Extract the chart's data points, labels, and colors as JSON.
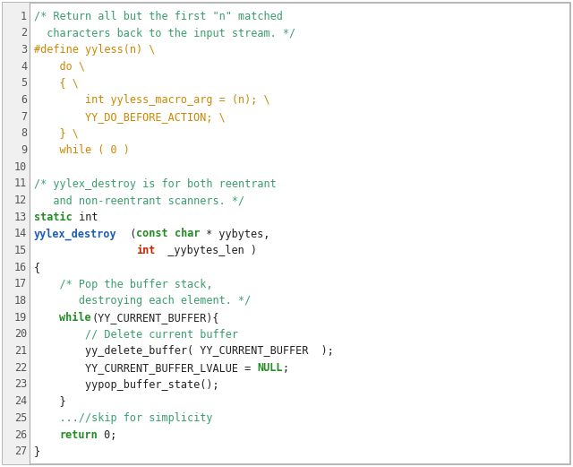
{
  "background_color": "#ffffff",
  "border_color": "#aaaaaa",
  "line_number_color": "#555555",
  "line_number_bg": "#f0f0f0",
  "figsize": [
    6.4,
    5.21
  ],
  "dpi": 100,
  "font_family": "DejaVu Sans Mono",
  "font_size": 8.5,
  "colors": {
    "comment": "#3a9e6e",
    "preprocessor": "#cc8800",
    "keyword": "#228B22",
    "function": "#1a5fb4",
    "normal": "#222222",
    "special": "#228B22",
    "red_keyword": "#cc2200"
  },
  "lines": [
    {
      "num": 1,
      "tokens": [
        {
          "text": "/* Return all but the first \"n\" matched",
          "color": "comment"
        }
      ]
    },
    {
      "num": 2,
      "tokens": [
        {
          "text": "  characters back to the input stream. */",
          "color": "comment"
        }
      ]
    },
    {
      "num": 3,
      "tokens": [
        {
          "text": "#define yyless(n) \\",
          "color": "preprocessor"
        }
      ]
    },
    {
      "num": 4,
      "tokens": [
        {
          "text": "    do \\",
          "color": "preprocessor"
        }
      ]
    },
    {
      "num": 5,
      "tokens": [
        {
          "text": "    { \\",
          "color": "preprocessor"
        }
      ]
    },
    {
      "num": 6,
      "tokens": [
        {
          "text": "        int yyless_macro_arg = (n); \\",
          "color": "preprocessor"
        }
      ]
    },
    {
      "num": 7,
      "tokens": [
        {
          "text": "        YY_DO_BEFORE_ACTION; \\",
          "color": "preprocessor"
        }
      ]
    },
    {
      "num": 8,
      "tokens": [
        {
          "text": "    } \\",
          "color": "preprocessor"
        }
      ]
    },
    {
      "num": 9,
      "tokens": [
        {
          "text": "    while ( 0 )",
          "color": "preprocessor"
        }
      ]
    },
    {
      "num": 10,
      "tokens": []
    },
    {
      "num": 11,
      "tokens": [
        {
          "text": "/* yylex_destroy is for both reentrant",
          "color": "comment"
        }
      ]
    },
    {
      "num": 12,
      "tokens": [
        {
          "text": "   and non-reentrant scanners. */",
          "color": "comment"
        }
      ]
    },
    {
      "num": 13,
      "tokens": [
        {
          "text": "static",
          "color": "keyword"
        },
        {
          "text": " int",
          "color": "normal"
        }
      ]
    },
    {
      "num": 14,
      "tokens": [
        {
          "text": "yylex_destroy",
          "color": "function"
        },
        {
          "text": "  (",
          "color": "normal"
        },
        {
          "text": "const",
          "color": "keyword"
        },
        {
          "text": " ",
          "color": "normal"
        },
        {
          "text": "char",
          "color": "keyword"
        },
        {
          "text": " * yybytes,",
          "color": "normal"
        }
      ]
    },
    {
      "num": 15,
      "tokens": [
        {
          "text": "                ",
          "color": "normal"
        },
        {
          "text": "int",
          "color": "red_keyword"
        },
        {
          "text": "  _yybytes_len )",
          "color": "normal"
        }
      ]
    },
    {
      "num": 16,
      "tokens": [
        {
          "text": "{",
          "color": "normal"
        }
      ]
    },
    {
      "num": 17,
      "tokens": [
        {
          "text": "    /* Pop the buffer stack,",
          "color": "comment"
        }
      ]
    },
    {
      "num": 18,
      "tokens": [
        {
          "text": "       destroying each element. */",
          "color": "comment"
        }
      ]
    },
    {
      "num": 19,
      "tokens": [
        {
          "text": "    ",
          "color": "normal"
        },
        {
          "text": "while",
          "color": "keyword"
        },
        {
          "text": "(YY_CURRENT_BUFFER){",
          "color": "normal"
        }
      ]
    },
    {
      "num": 20,
      "tokens": [
        {
          "text": "        // Delete current buffer",
          "color": "comment"
        }
      ]
    },
    {
      "num": 21,
      "tokens": [
        {
          "text": "        yy_delete_buffer( YY_CURRENT_BUFFER  );",
          "color": "normal"
        }
      ]
    },
    {
      "num": 22,
      "tokens": [
        {
          "text": "        YY_CURRENT_BUFFER_LVALUE = ",
          "color": "normal"
        },
        {
          "text": "NULL",
          "color": "special"
        },
        {
          "text": ";",
          "color": "normal"
        }
      ]
    },
    {
      "num": 23,
      "tokens": [
        {
          "text": "        yypop_buffer_state();",
          "color": "normal"
        }
      ]
    },
    {
      "num": 24,
      "tokens": [
        {
          "text": "    }",
          "color": "normal"
        }
      ]
    },
    {
      "num": 25,
      "tokens": [
        {
          "text": "    ...//skip for simplicity",
          "color": "comment"
        }
      ]
    },
    {
      "num": 26,
      "tokens": [
        {
          "text": "    ",
          "color": "normal"
        },
        {
          "text": "return",
          "color": "keyword"
        },
        {
          "text": " 0;",
          "color": "normal"
        }
      ]
    },
    {
      "num": 27,
      "tokens": [
        {
          "text": "}",
          "color": "normal"
        }
      ]
    }
  ]
}
